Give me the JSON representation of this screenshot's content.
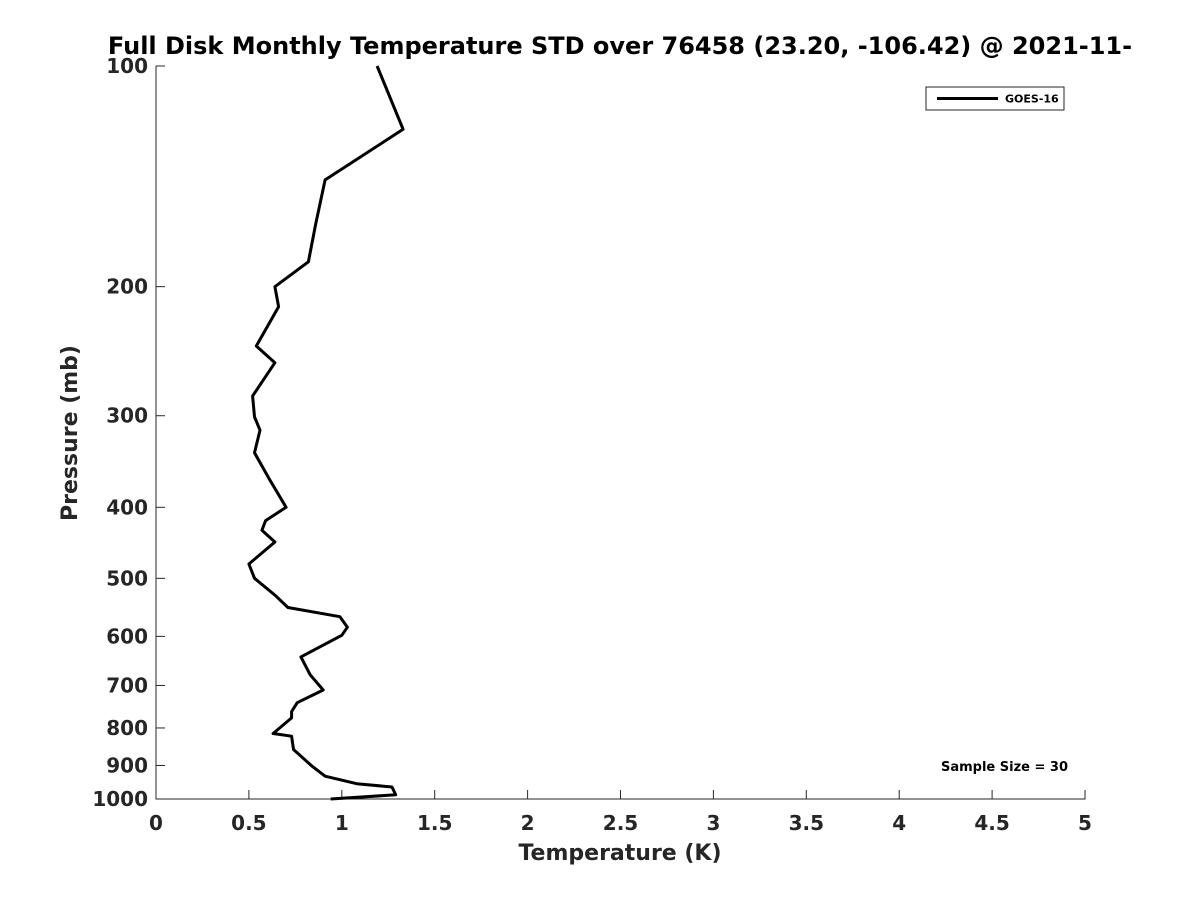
{
  "chart_data": {
    "type": "line",
    "title": "Full Disk Monthly Temperature STD over 76458 (23.20, -106.42) @ 2021-11-",
    "xlabel": "Temperature (K)",
    "ylabel": "Pressure (mb)",
    "xlim": [
      0,
      5
    ],
    "ylim": [
      100,
      1000
    ],
    "y_scale": "log",
    "y_reversed": true,
    "grid": false,
    "x_ticks": [
      0,
      0.5,
      1,
      1.5,
      2,
      2.5,
      3,
      3.5,
      4,
      4.5,
      5
    ],
    "x_tick_labels": [
      "0",
      "0.5",
      "1",
      "1.5",
      "2",
      "2.5",
      "3",
      "3.5",
      "4",
      "4.5",
      "5"
    ],
    "y_ticks": [
      100,
      200,
      300,
      400,
      500,
      600,
      700,
      800,
      900,
      1000
    ],
    "y_tick_labels": [
      "100",
      "200",
      "300",
      "400",
      "500",
      "600",
      "700",
      "800",
      "900",
      "1000"
    ],
    "legend": {
      "position": "top-right",
      "entries": [
        "GOES-16"
      ]
    },
    "annotations": [
      "Sample Size = 30"
    ],
    "series": [
      {
        "name": "GOES-16",
        "color": "#000000",
        "x": [
          1.19,
          1.33,
          0.91,
          0.86,
          0.82,
          0.64,
          0.66,
          0.54,
          0.64,
          0.52,
          0.53,
          0.56,
          0.53,
          0.61,
          0.7,
          0.59,
          0.57,
          0.64,
          0.5,
          0.53,
          0.64,
          0.71,
          0.99,
          1.03,
          1.0,
          0.78,
          0.83,
          0.9,
          0.76,
          0.73,
          0.73,
          0.63,
          0.73,
          0.74,
          0.84,
          0.91,
          1.08,
          1.27,
          1.29,
          0.94
        ],
        "y": [
          100,
          122,
          143,
          164,
          185,
          200,
          213,
          241,
          254,
          282,
          301,
          314,
          337,
          366,
          400,
          417,
          430,
          446,
          478,
          500,
          527,
          548,
          564,
          583,
          598,
          640,
          677,
          710,
          739,
          760,
          775,
          814,
          821,
          856,
          902,
          931,
          953,
          963,
          987,
          1000
        ]
      }
    ]
  }
}
